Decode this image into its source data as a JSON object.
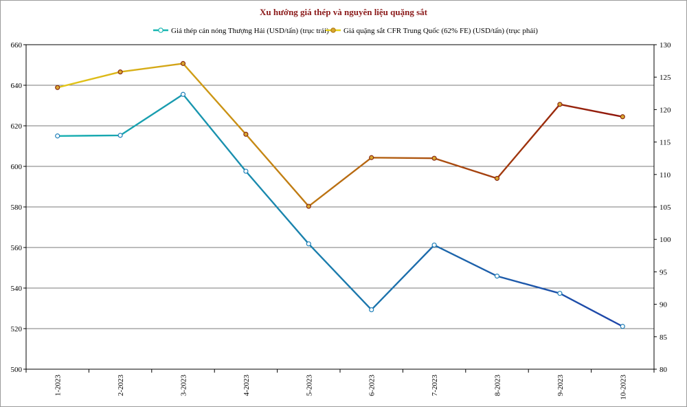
{
  "chart_data": {
    "type": "line",
    "title": "Xu hướng giá thép và nguyên liệu quặng sắt",
    "title_color": "#8B1A1A",
    "categories": [
      "1-2023",
      "2-2023",
      "3-2023",
      "4-2023",
      "5-2023",
      "6-2023",
      "7-2023",
      "8-2023",
      "9-2023",
      "10-2023"
    ],
    "y_left": {
      "min": 500,
      "max": 660,
      "step": 20,
      "ticks": [
        "500",
        "520",
        "540",
        "560",
        "580",
        "600",
        "620",
        "640",
        "660"
      ]
    },
    "y_right": {
      "min": 80,
      "max": 130,
      "step": 5,
      "ticks": [
        "80",
        "85",
        "90",
        "95",
        "100",
        "105",
        "110",
        "115",
        "120",
        "125",
        "130"
      ]
    },
    "grid": true,
    "legend_position": "top",
    "series": [
      {
        "name": "Giá thép cán nóng Thượng Hải (USD/tấn) (trục trái)",
        "axis": "left",
        "values": [
          615,
          615.3,
          635.5,
          597.6,
          561.8,
          529.3,
          561.2,
          545.9,
          537.4,
          521.1
        ],
        "color_start": "#17B6B1",
        "color_end": "#1F3FA8",
        "marker_fill": "#ffffff"
      },
      {
        "name": "Giá quặng sắt CFR Trung Quốc (62% FE) (USD/tấn) (trục phải)",
        "axis": "right",
        "values": [
          123.4,
          125.8,
          127.1,
          116.2,
          105.1,
          112.6,
          112.5,
          109.4,
          120.8,
          118.9
        ],
        "color_start": "#E8D21A",
        "color_end": "#8B0A0A",
        "marker_fill": "#D9A830"
      }
    ]
  }
}
